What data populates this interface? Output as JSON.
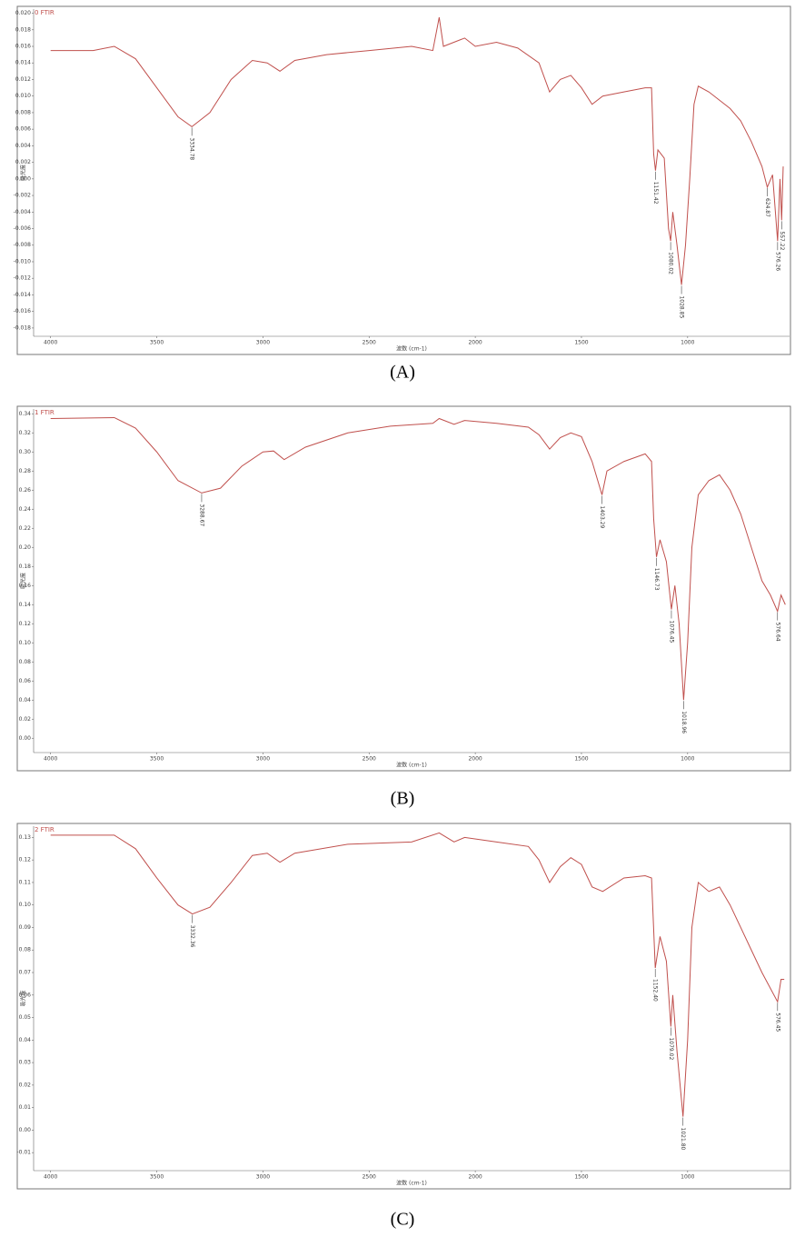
{
  "chart_data": [
    {
      "type": "line",
      "title": "0 FTIR",
      "caption": "(A)",
      "x_label": "波数 (cm-1)",
      "y_label": "吸光度",
      "color": "#c0504d",
      "xlim": [
        4080,
        520
      ],
      "xticks": [
        4000,
        3500,
        3000,
        2500,
        2000,
        1500,
        1000
      ],
      "ylim": [
        -0.019,
        0.0205
      ],
      "yticks": [
        {
          "value": -0.018,
          "label": "-0.018"
        },
        {
          "value": -0.016,
          "label": "-0.016"
        },
        {
          "value": -0.014,
          "label": "-0.014"
        },
        {
          "value": -0.012,
          "label": "-0.012"
        },
        {
          "value": -0.01,
          "label": "-0.010"
        },
        {
          "value": -0.008,
          "label": "-0.008"
        },
        {
          "value": -0.006,
          "label": "-0.006"
        },
        {
          "value": -0.004,
          "label": "-0.004"
        },
        {
          "value": -0.002,
          "label": "-0.002"
        },
        {
          "value": 0,
          "label": "0.000"
        },
        {
          "value": 0.002,
          "label": "0.002"
        },
        {
          "value": 0.004,
          "label": "0.004"
        },
        {
          "value": 0.006,
          "label": "0.006"
        },
        {
          "value": 0.008,
          "label": "0.008"
        },
        {
          "value": 0.01,
          "label": "0.010"
        },
        {
          "value": 0.012,
          "label": "0.012"
        },
        {
          "value": 0.014,
          "label": "0.014"
        },
        {
          "value": 0.016,
          "label": "0.016"
        },
        {
          "value": 0.018,
          "label": "0.018"
        },
        {
          "value": 0.02,
          "label": "0.020"
        }
      ],
      "x": [
        4000,
        3800,
        3700,
        3600,
        3500,
        3400,
        3334.78,
        3250,
        3150,
        3050,
        2980,
        2920,
        2850,
        2700,
        2500,
        2300,
        2200,
        2170,
        2150,
        2050,
        2000,
        1900,
        1800,
        1700,
        1650,
        1600,
        1550,
        1500,
        1450,
        1400,
        1300,
        1200,
        1170,
        1160,
        1151.42,
        1140,
        1110,
        1090,
        1080.02,
        1070,
        1050,
        1028.85,
        1010,
        990,
        970,
        950,
        900,
        850,
        800,
        750,
        700,
        650,
        624.87,
        600,
        576.26,
        565,
        557.22,
        550
      ],
      "values": [
        0.0155,
        0.0155,
        0.016,
        0.0145,
        0.011,
        0.0075,
        0.0063,
        0.008,
        0.012,
        0.0143,
        0.014,
        0.013,
        0.0143,
        0.015,
        0.0155,
        0.016,
        0.0155,
        0.0195,
        0.016,
        0.017,
        0.016,
        0.0165,
        0.0158,
        0.014,
        0.0105,
        0.012,
        0.0125,
        0.011,
        0.009,
        0.01,
        0.0105,
        0.011,
        0.011,
        0.003,
        0.001,
        0.0035,
        0.0025,
        -0.006,
        -0.0075,
        -0.004,
        -0.008,
        -0.0128,
        -0.008,
        0,
        0.009,
        0.0112,
        0.0105,
        0.0095,
        0.0085,
        0.007,
        0.0045,
        0.0015,
        -0.001,
        0.0005,
        -0.0075,
        0,
        -0.005,
        0.0015
      ],
      "annotations": [
        {
          "value": 3334.78,
          "label": "3334.78"
        },
        {
          "value": 1151.42,
          "label": "1151.42"
        },
        {
          "value": 1080.02,
          "label": "1080.02"
        },
        {
          "value": 1028.85,
          "label": "1028.85"
        },
        {
          "value": 624.87,
          "label": "624.87"
        },
        {
          "value": 576.26,
          "label": "576.26"
        },
        {
          "value": 557.22,
          "label": "557.22"
        }
      ]
    },
    {
      "type": "line",
      "title": "1 FTIR",
      "caption": "(B)",
      "x_label": "波数 (cm-1)",
      "y_label": "吸光度",
      "color": "#c0504d",
      "xlim": [
        4080,
        520
      ],
      "xticks": [
        4000,
        3500,
        3000,
        2500,
        2000,
        1500,
        1000
      ],
      "ylim": [
        -0.015,
        0.345
      ],
      "yticks": [
        {
          "value": 0,
          "label": "0.00"
        },
        0.02,
        0.04,
        0.06,
        0.08,
        {
          "value": 0.1,
          "label": "0.10"
        },
        0.12,
        0.14,
        0.16,
        0.18,
        {
          "value": 0.2,
          "label": "0.20"
        },
        0.22,
        0.24,
        0.26,
        0.28,
        {
          "value": 0.3,
          "label": "0.30"
        },
        0.32,
        0.34
      ],
      "x": [
        4000,
        3700,
        3600,
        3500,
        3400,
        3288.67,
        3200,
        3100,
        3000,
        2950,
        2900,
        2800,
        2600,
        2400,
        2200,
        2170,
        2100,
        2050,
        1900,
        1750,
        1700,
        1650,
        1600,
        1550,
        1500,
        1450,
        1403.29,
        1380,
        1300,
        1200,
        1170,
        1160,
        1146.73,
        1130,
        1100,
        1076.45,
        1060,
        1040,
        1018.96,
        1000,
        980,
        950,
        900,
        850,
        800,
        750,
        700,
        650,
        610,
        576.64,
        560,
        540
      ],
      "values": [
        0.335,
        0.336,
        0.325,
        0.3,
        0.27,
        0.257,
        0.262,
        0.285,
        0.3,
        0.301,
        0.292,
        0.305,
        0.32,
        0.327,
        0.33,
        0.335,
        0.329,
        0.333,
        0.33,
        0.326,
        0.318,
        0.303,
        0.315,
        0.32,
        0.316,
        0.29,
        0.255,
        0.28,
        0.29,
        0.298,
        0.29,
        0.23,
        0.19,
        0.208,
        0.185,
        0.135,
        0.16,
        0.12,
        0.04,
        0.1,
        0.2,
        0.255,
        0.27,
        0.276,
        0.26,
        0.235,
        0.2,
        0.165,
        0.15,
        0.133,
        0.15,
        0.14
      ],
      "annotations": [
        {
          "value": 3288.67,
          "label": "3288.67"
        },
        {
          "value": 1403.29,
          "label": "1403.29"
        },
        {
          "value": 1146.73,
          "label": "1146.73"
        },
        {
          "value": 1076.45,
          "label": "1076.45"
        },
        {
          "value": 1018.96,
          "label": "1018.96"
        },
        {
          "value": 576.64,
          "label": "576.64"
        }
      ]
    },
    {
      "type": "line",
      "title": "2 FTIR",
      "caption": "(C)",
      "x_label": "波数 (cm-1)",
      "y_label": "吸光度",
      "color": "#c0504d",
      "xlim": [
        4080,
        520
      ],
      "xticks": [
        4000,
        3500,
        3000,
        2500,
        2000,
        1500,
        1000
      ],
      "ylim": [
        -0.018,
        0.135
      ],
      "yticks": [
        -0.01,
        {
          "value": 0,
          "label": "0.00"
        },
        0.01,
        0.02,
        0.03,
        0.04,
        0.05,
        0.06,
        0.07,
        0.08,
        0.09,
        {
          "value": 0.1,
          "label": "0.10"
        },
        0.11,
        0.12,
        0.13
      ],
      "x": [
        4000,
        3700,
        3600,
        3500,
        3400,
        3332.36,
        3250,
        3150,
        3050,
        2980,
        2920,
        2850,
        2600,
        2300,
        2170,
        2100,
        2050,
        1900,
        1750,
        1700,
        1650,
        1600,
        1550,
        1500,
        1450,
        1400,
        1300,
        1200,
        1170,
        1152.4,
        1130,
        1100,
        1079.02,
        1070,
        1050,
        1021.8,
        1000,
        980,
        950,
        900,
        850,
        800,
        750,
        700,
        650,
        576.45,
        560,
        545
      ],
      "values": [
        0.131,
        0.131,
        0.125,
        0.112,
        0.1,
        0.096,
        0.099,
        0.11,
        0.122,
        0.123,
        0.119,
        0.123,
        0.127,
        0.128,
        0.132,
        0.128,
        0.13,
        0.128,
        0.126,
        0.12,
        0.11,
        0.117,
        0.121,
        0.118,
        0.108,
        0.106,
        0.112,
        0.113,
        0.112,
        0.072,
        0.086,
        0.075,
        0.046,
        0.06,
        0.035,
        0.006,
        0.04,
        0.09,
        0.11,
        0.106,
        0.108,
        0.1,
        0.09,
        0.08,
        0.07,
        0.057,
        0.067,
        0.067
      ],
      "annotations": [
        {
          "value": 3332.36,
          "label": "3332.36"
        },
        {
          "value": 1152.4,
          "label": "1152.40"
        },
        {
          "value": 1079.02,
          "label": "1079.02"
        },
        {
          "value": 1021.8,
          "label": "1021.80"
        },
        {
          "value": 576.45,
          "label": "576.45"
        }
      ]
    }
  ]
}
